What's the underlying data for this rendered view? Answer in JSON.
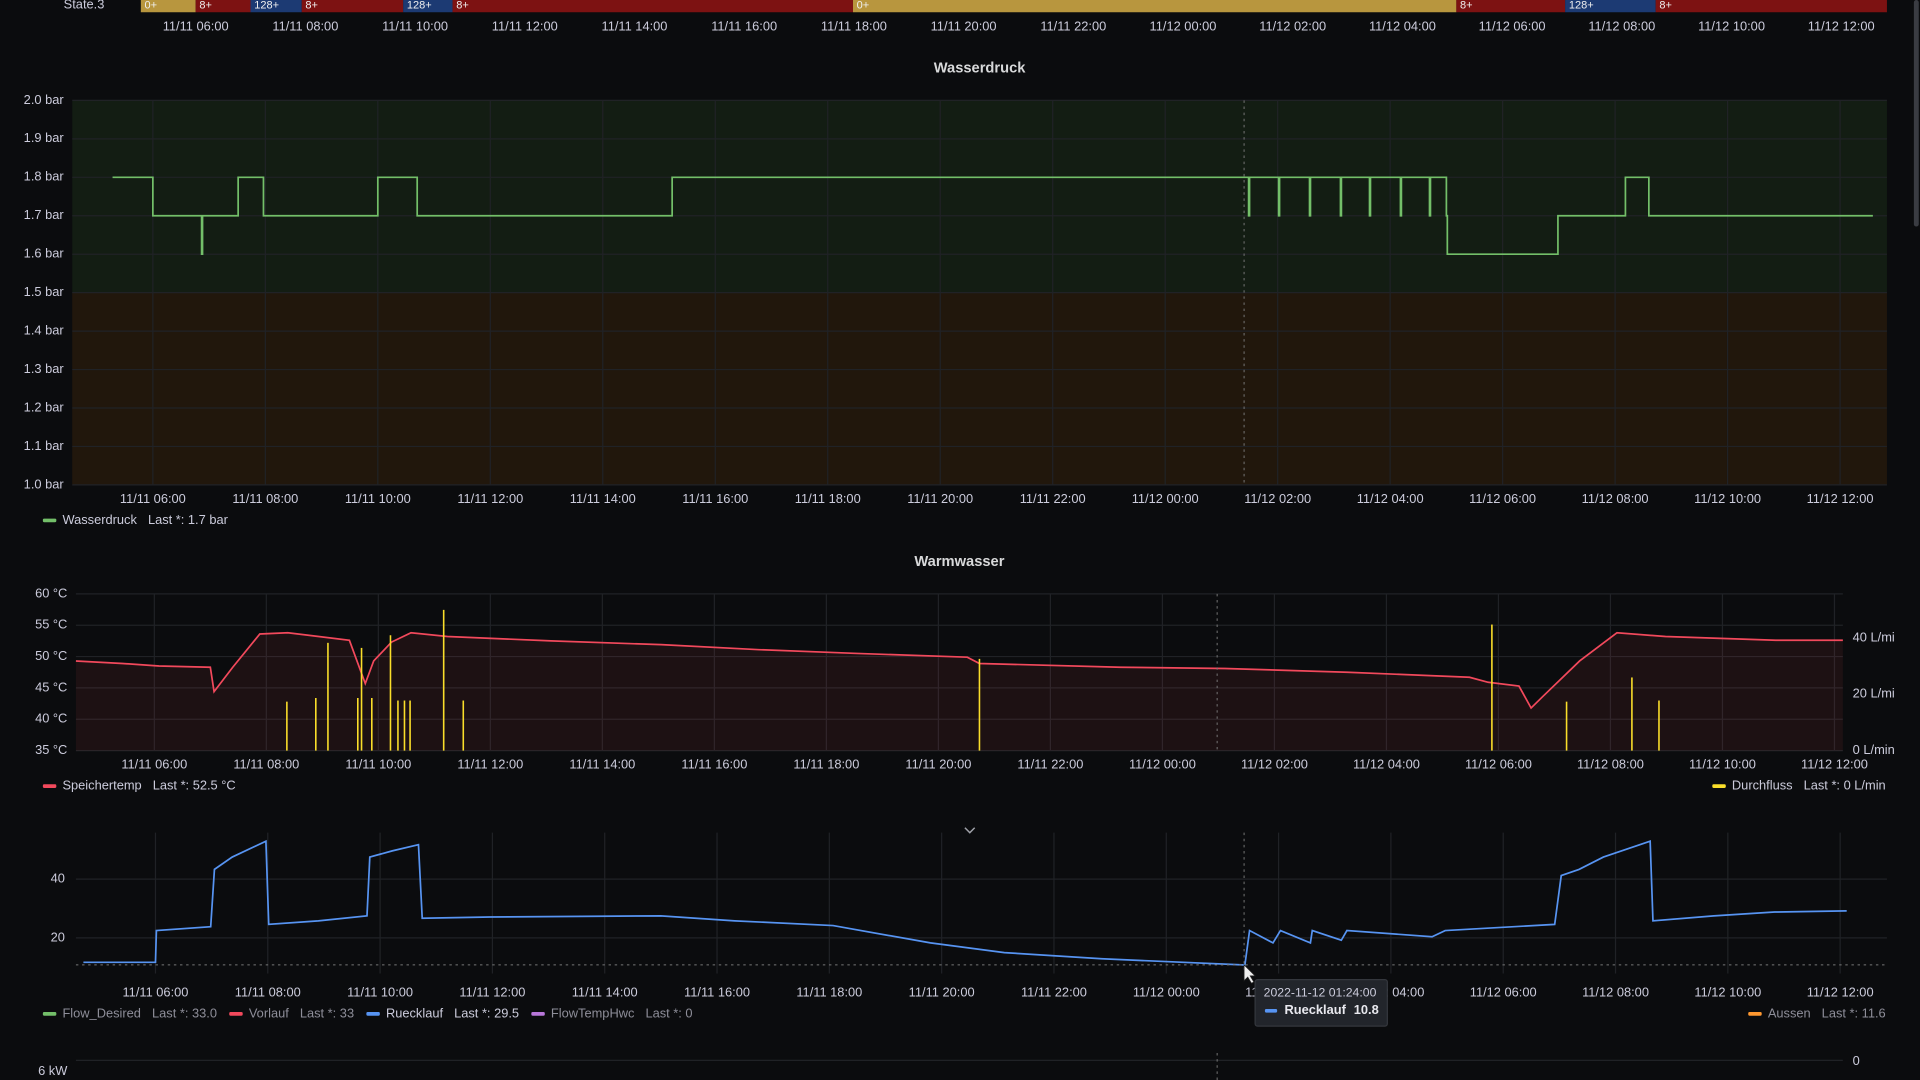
{
  "state_timeline": {
    "type": "state-timeline",
    "row_label": "State.3",
    "xlim": [
      "11/11 05:00",
      "11/12 12:50"
    ],
    "xticks": [
      "11/11 06:00",
      "11/11 08:00",
      "11/11 10:00",
      "11/11 12:00",
      "11/11 14:00",
      "11/11 16:00",
      "11/11 18:00",
      "11/11 20:00",
      "11/11 22:00",
      "11/12 00:00",
      "11/12 02:00",
      "11/12 04:00",
      "11/12 06:00",
      "11/12 08:00",
      "11/12 10:00",
      "11/12 12:00"
    ],
    "segments": [
      {
        "start": "11/11 05:00",
        "label": "0+",
        "color": "#b8963e"
      },
      {
        "start": "11/11 06:00",
        "label": "8+",
        "color": "#7d1212"
      },
      {
        "start": "11/11 07:00",
        "label": "128+",
        "color": "#1c3a73"
      },
      {
        "start": "11/11 07:56",
        "label": "8+",
        "color": "#7d1212"
      },
      {
        "start": "11/11 09:47",
        "label": "128+",
        "color": "#1c3a73"
      },
      {
        "start": "11/11 10:41",
        "label": "8+",
        "color": "#7d1212"
      },
      {
        "start": "11/11 17:59",
        "label": "0+",
        "color": "#b8963e"
      },
      {
        "start": "11/12 04:59",
        "label": "8+",
        "color": "#7d1212"
      },
      {
        "start": "11/12 06:58",
        "label": "128+",
        "color": "#1c3a73"
      },
      {
        "start": "11/12 08:37",
        "label": "8+",
        "color": "#7d1212"
      }
    ],
    "end": "11/12 12:50"
  },
  "panels": [
    {
      "type": "line",
      "title": "Wasserdruck",
      "xlim": [
        "11/11 04:34",
        "11/12 12:50"
      ],
      "xticks": [
        "11/11 06:00",
        "11/11 08:00",
        "11/11 10:00",
        "11/11 12:00",
        "11/11 14:00",
        "11/11 16:00",
        "11/11 18:00",
        "11/11 20:00",
        "11/11 22:00",
        "11/12 00:00",
        "11/12 02:00",
        "11/12 04:00",
        "11/12 06:00",
        "11/12 08:00",
        "11/12 10:00",
        "11/12 12:00"
      ],
      "ylim": [
        1,
        2
      ],
      "yticks": [
        {
          "value": 1,
          "label": "1.0 bar"
        },
        {
          "value": 1.1,
          "label": "1.1 bar"
        },
        {
          "value": 1.2,
          "label": "1.2 bar"
        },
        {
          "value": 1.3,
          "label": "1.3 bar"
        },
        {
          "value": 1.4,
          "label": "1.4 bar"
        },
        {
          "value": 1.5,
          "label": "1.5 bar"
        },
        {
          "value": 1.6,
          "label": "1.6 bar"
        },
        {
          "value": 1.7,
          "label": "1.7 bar"
        },
        {
          "value": 1.8,
          "label": "1.8 bar"
        },
        {
          "value": 1.9,
          "label": "1.9 bar"
        },
        {
          "value": 2,
          "label": "2.0 bar"
        }
      ],
      "grid": true,
      "threshold": {
        "value": 1.5,
        "above": "#131d13",
        "below": "#21170c"
      },
      "series": [
        {
          "name": "Wasserdruck",
          "color": "#73bf69",
          "step": true,
          "legend": "Last *: 1.7 bar",
          "x": [
            "11/11 05:17",
            "11/11 06:00",
            "11/11 06:52",
            "11/11 06:53",
            "11/11 07:31",
            "11/11 07:58",
            "11/11 10:00",
            "11/11 10:42",
            "11/11 15:14",
            "11/12 01:29",
            "11/12 01:30",
            "11/12 02:01",
            "11/12 02:02",
            "11/12 02:34",
            "11/12 02:35",
            "11/12 03:07",
            "11/12 03:08",
            "11/12 03:38",
            "11/12 03:39",
            "11/12 04:11",
            "11/12 04:12",
            "11/12 04:42",
            "11/12 04:43",
            "11/12 05:00",
            "11/12 05:01",
            "11/12 06:59",
            "11/12 08:11",
            "11/12 08:36",
            "11/12 12:35"
          ],
          "values": [
            1.8,
            1.7,
            1.6,
            1.7,
            1.8,
            1.7,
            1.8,
            1.7,
            1.8,
            1.7,
            1.8,
            1.7,
            1.8,
            1.7,
            1.8,
            1.7,
            1.8,
            1.7,
            1.8,
            1.7,
            1.8,
            1.7,
            1.8,
            1.7,
            1.6,
            1.7,
            1.8,
            1.7,
            1.7
          ]
        }
      ]
    },
    {
      "type": "line",
      "title": "Warmwasser",
      "xlim": [
        "11/11 04:36",
        "11/12 12:09"
      ],
      "xticks": [
        "11/11 06:00",
        "11/11 08:00",
        "11/11 10:00",
        "11/11 12:00",
        "11/11 14:00",
        "11/11 16:00",
        "11/11 18:00",
        "11/11 20:00",
        "11/11 22:00",
        "11/12 00:00",
        "11/12 02:00",
        "11/12 04:00",
        "11/12 06:00",
        "11/12 08:00",
        "11/12 10:00",
        "11/12 12:00"
      ],
      "ylim": [
        35,
        60
      ],
      "yticks": [
        {
          "value": 35,
          "label": "35 °C"
        },
        {
          "value": 40,
          "label": "40 °C"
        },
        {
          "value": 45,
          "label": "45 °C"
        },
        {
          "value": 50,
          "label": "50 °C"
        },
        {
          "value": 55,
          "label": "55 °C"
        },
        {
          "value": 60,
          "label": "60 °C"
        }
      ],
      "y2lim": [
        0,
        55.7
      ],
      "y2ticks": [
        {
          "value": 0,
          "label": "0 L/min"
        },
        {
          "value": 20,
          "label": "20 L/mi"
        },
        {
          "value": 40,
          "label": "40 L/mi"
        }
      ],
      "grid": true,
      "series": [
        {
          "name": "Speichertemp",
          "color": "#f2495c",
          "fill": true,
          "legend": "Last *: 52.5 °C",
          "x": [
            "11/11 04:36",
            "11/11 05:26",
            "11/11 06:05",
            "11/11 07:00",
            "11/11 07:04",
            "11/11 07:24",
            "11/11 07:53",
            "11/11 08:23",
            "11/11 08:56",
            "11/11 09:29",
            "11/11 09:46",
            "11/11 09:55",
            "11/11 10:14",
            "11/11 10:35",
            "11/11 11:14",
            "11/11 13:05",
            "11/11 15:03",
            "11/11 16:48",
            "11/11 18:33",
            "11/11 20:31",
            "11/11 20:44",
            "11/11 23:15",
            "11/12 01:07",
            "11/12 03:18",
            "11/12 05:29",
            "11/12 05:49",
            "11/12 06:22",
            "11/12 06:35",
            "11/12 06:48",
            "11/12 07:27",
            "11/12 08:07",
            "11/12 08:59",
            "11/12 10:57",
            "11/12 12:09"
          ],
          "values": [
            49.3,
            48.9,
            48.5,
            48.3,
            44.4,
            48.3,
            53.6,
            53.8,
            53.2,
            52.6,
            45.7,
            49.3,
            52.3,
            53.8,
            53.2,
            52.5,
            51.9,
            51.1,
            50.5,
            49.9,
            48.9,
            48.3,
            48.1,
            47.5,
            46.7,
            45.9,
            45.3,
            41.8,
            43.7,
            49.3,
            53.8,
            53.2,
            52.6,
            52.6
          ]
        },
        {
          "name": "Durchfluss",
          "color": "#fade2a",
          "axis": "y2",
          "bars": true,
          "legend": "Last *: 0 L/min",
          "legend_align": "right",
          "x": [
            "11/11 08:22",
            "11/11 08:53",
            "11/11 09:06",
            "11/11 09:38",
            "11/11 09:42",
            "11/11 09:53",
            "11/11 10:13",
            "11/11 10:21",
            "11/11 10:28",
            "11/11 10:34",
            "11/11 11:10",
            "11/11 11:31",
            "11/11 20:44",
            "11/12 05:53",
            "11/12 07:13",
            "11/12 08:23",
            "11/12 08:52"
          ],
          "values": [
            17.4,
            18.7,
            38.3,
            18.7,
            36.5,
            18.7,
            41,
            17.8,
            17.8,
            17.8,
            50,
            17.8,
            32.6,
            44.8,
            17.4,
            26,
            17.8
          ]
        }
      ]
    },
    {
      "type": "line",
      "xlim": [
        "11/11 04:35",
        "11/12 12:50"
      ],
      "xticks": [
        "11/11 06:00",
        "11/11 08:00",
        "11/11 10:00",
        "11/11 12:00",
        "11/11 14:00",
        "11/11 16:00",
        "11/11 18:00",
        "11/11 20:00",
        "11/11 22:00",
        "11/12 00:00",
        "11/12 02:00",
        "11/12 04:00",
        "11/12 06:00",
        "11/12 08:00",
        "11/12 10:00",
        "11/12 12:00"
      ],
      "ylim": [
        7.9,
        55.8
      ],
      "yticks": [
        20,
        40
      ],
      "grid": true,
      "series": [
        {
          "name": "Flow_Desired",
          "color": "#73bf69",
          "hidden": true,
          "legend": "Last *: 33.0"
        },
        {
          "name": "Vorlauf",
          "color": "#f2495c",
          "hidden": true,
          "legend": "Last *: 33"
        },
        {
          "name": "Ruecklauf",
          "color": "#5794f2",
          "legend": "Last *: 29.5",
          "x": [
            "11/11 04:43",
            "11/11 06:00",
            "11/11 06:01",
            "11/11 06:59",
            "11/11 07:03",
            "11/11 07:22",
            "11/11 07:58",
            "11/11 08:01",
            "11/11 08:54",
            "11/11 09:46",
            "11/11 09:49",
            "11/11 10:13",
            "11/11 10:41",
            "11/11 10:45",
            "11/11 11:57",
            "11/11 15:00",
            "11/11 16:19",
            "11/11 18:04",
            "11/11 19:48",
            "11/11 21:07",
            "11/11 22:51",
            "11/12 01:24",
            "11/12 01:29",
            "11/12 01:54",
            "11/12 02:02",
            "11/12 02:34",
            "11/12 02:36",
            "11/12 03:07",
            "11/12 03:13",
            "11/12 04:44",
            "11/12 04:58",
            "11/12 06:55",
            "11/12 07:02",
            "11/12 07:21",
            "11/12 07:47",
            "11/12 08:37",
            "11/12 08:40",
            "11/12 09:45",
            "11/12 10:50",
            "11/12 12:07"
          ],
          "values": [
            11.7,
            11.7,
            22.5,
            23.8,
            43.3,
            47.5,
            52.9,
            24.6,
            25.8,
            27.5,
            47.5,
            49.6,
            51.7,
            26.7,
            27.1,
            27.5,
            25.8,
            24.2,
            18.3,
            15,
            12.9,
            10.8,
            22.5,
            18.3,
            22.5,
            18.3,
            22.5,
            19.2,
            22.5,
            20.4,
            22.5,
            24.6,
            41.2,
            43.3,
            47.5,
            52.9,
            25.8,
            27.5,
            28.8,
            29.2
          ]
        },
        {
          "name": "FlowTempHwc",
          "color": "#b877d9",
          "hidden": true,
          "legend": "Last *: 0"
        },
        {
          "name": "Aussen",
          "color": "#ff9830",
          "hidden": true,
          "legend": "Last *: 11.6",
          "legend_align": "right"
        }
      ],
      "tooltip": {
        "time": "2022-11-12 01:24:00",
        "series": "Ruecklauf",
        "value": 10.8
      }
    }
  ],
  "partial_panel": {
    "ytick_label": "6 kW",
    "y2tick_label": "0"
  }
}
